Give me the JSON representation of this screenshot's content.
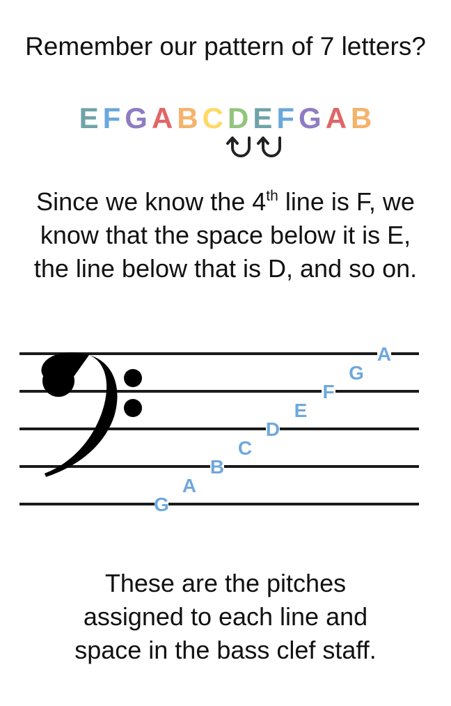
{
  "heading": "Remember our pattern of 7 letters?",
  "pattern": [
    {
      "letter": "E",
      "color": "#6fa3a8"
    },
    {
      "letter": "F",
      "color": "#6aa8dc"
    },
    {
      "letter": "G",
      "color": "#8e7cc3"
    },
    {
      "letter": "A",
      "color": "#e06666"
    },
    {
      "letter": "B",
      "color": "#f6b26b"
    },
    {
      "letter": "C",
      "color": "#ffd966"
    },
    {
      "letter": "D",
      "color": "#93c47d"
    },
    {
      "letter": "E",
      "color": "#6fa3a8"
    },
    {
      "letter": "F",
      "color": "#6aa8dc"
    },
    {
      "letter": "G",
      "color": "#8e7cc3"
    },
    {
      "letter": "A",
      "color": "#e06666"
    },
    {
      "letter": "B",
      "color": "#f6b26b"
    }
  ],
  "arrow_icons": [
    "counterclockwise-arrow-icon",
    "counterclockwise-arrow-icon"
  ],
  "explanation": {
    "line1_before": "Since we know the 4",
    "line1_sup": "th",
    "line1_after": " line is F, we",
    "line2": "know that the space below it is E,",
    "line3": "the line below that is D, and so on."
  },
  "staff": {
    "clef": "bass",
    "note_color": "#6fa8dc",
    "notes": [
      {
        "letter": "G",
        "position": "line-1"
      },
      {
        "letter": "A",
        "position": "space-1"
      },
      {
        "letter": "B",
        "position": "line-2"
      },
      {
        "letter": "C",
        "position": "space-2"
      },
      {
        "letter": "D",
        "position": "line-3"
      },
      {
        "letter": "E",
        "position": "space-3"
      },
      {
        "letter": "F",
        "position": "line-4"
      },
      {
        "letter": "G",
        "position": "space-4"
      },
      {
        "letter": "A",
        "position": "line-5"
      }
    ]
  },
  "footer": {
    "line1": "These are the pitches",
    "line2": "assigned to each line and",
    "line3": "space in the bass clef staff."
  }
}
